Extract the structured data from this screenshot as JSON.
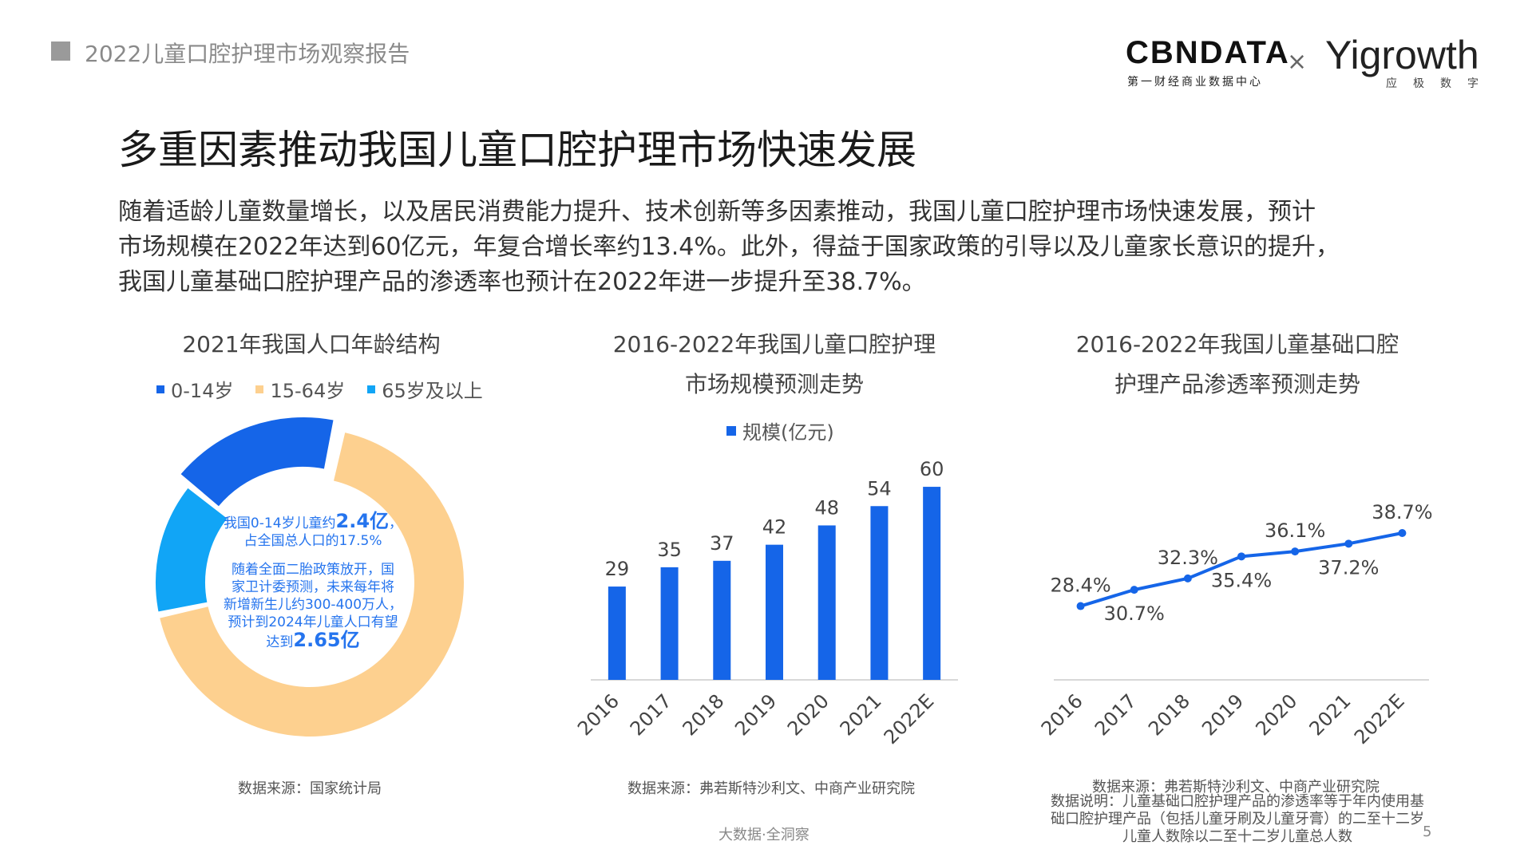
{
  "header": {
    "report_title": "2022儿童口腔护理市场观察报告",
    "logo_cbn": "CBNDATA",
    "logo_cbn_sub": "第一财经商业数据中心",
    "logo_separator": "×",
    "logo_yigrowth": "Yigrowth",
    "logo_yigrowth_sub": "应极数字"
  },
  "main_title": "多重因素推动我国儿童口腔护理市场快速发展",
  "intro_lines": [
    "随着适龄儿童数量增长，以及居民消费能力提升、技术创新等多因素推动，我国儿童口腔护理市场快速发展，预计",
    "市场规模在2022年达到60亿元，年复合增长率约13.4%。此外，得益于国家政策的引导以及儿童家长意识的提升，",
    "我国儿童基础口腔护理产品的渗透率也预计在2022年进一步提升至38.7%。"
  ],
  "colors": {
    "blue": "#1565e8",
    "orange": "#fdd08f",
    "lightblue": "#11a5f6",
    "gray_axis": "#cccccc"
  },
  "chart_data": [
    {
      "type": "pie",
      "title": "2021年我国人口年龄结构",
      "categories": [
        "0-14岁",
        "15-64岁",
        "65岁及以上"
      ],
      "values": [
        17.5,
        68.3,
        14.2
      ],
      "colors": [
        "#1565e8",
        "#fdd08f",
        "#11a5f6"
      ],
      "legend": "top",
      "center_text": {
        "line1_prefix": "我国0-14岁儿童约",
        "line1_value": "2.4亿",
        "line1_suffix": "，",
        "line2": "占全国总人口的17.5%",
        "line3": "随着全面二胎政策放开，国",
        "line4": "家卫计委预测，未来每年将",
        "line5": "新增新生儿约300-400万人，",
        "line6": "预计到2024年儿童人口有望",
        "line7_prefix": "达到",
        "line7_value": "2.65亿"
      },
      "source": "数据来源：国家统计局"
    },
    {
      "type": "bar",
      "title_line1": "2016-2022年我国儿童口腔护理",
      "title_line2": "市场规模预测走势",
      "categories": [
        "2016",
        "2017",
        "2018",
        "2019",
        "2020",
        "2021",
        "2022E"
      ],
      "series": [
        {
          "name": "规模(亿元)",
          "values": [
            29,
            35,
            37,
            42,
            48,
            54,
            60
          ]
        }
      ],
      "ylim": [
        0,
        62
      ],
      "grid": false,
      "legend": "top",
      "source": "数据来源：弗若斯特沙利文、中商产业研究院"
    },
    {
      "type": "line",
      "title_line1": "2016-2022年我国儿童基础口腔",
      "title_line2": "护理产品渗透率预测走势",
      "categories": [
        "2016",
        "2017",
        "2018",
        "2019",
        "2020",
        "2021",
        "2022E"
      ],
      "values": [
        28.4,
        30.7,
        32.3,
        35.4,
        36.1,
        37.2,
        38.7
      ],
      "labels": [
        "28.4%",
        "30.7%",
        "32.3%",
        "35.4%",
        "36.1%",
        "37.2%",
        "38.7%"
      ],
      "ylim": [
        18,
        45
      ],
      "grid": false,
      "source": "数据来源：弗若斯特沙利文、中商产业研究院",
      "note_lines": [
        "数据说明：儿童基础口腔护理产品的渗透率等于年内使用基",
        "础口腔护理产品（包括儿童牙刷及儿童牙膏）的二至十二岁",
        "儿童人数除以二至十二岁儿童总人数"
      ]
    }
  ],
  "footer": "大数据·全洞察",
  "page_number": "5"
}
